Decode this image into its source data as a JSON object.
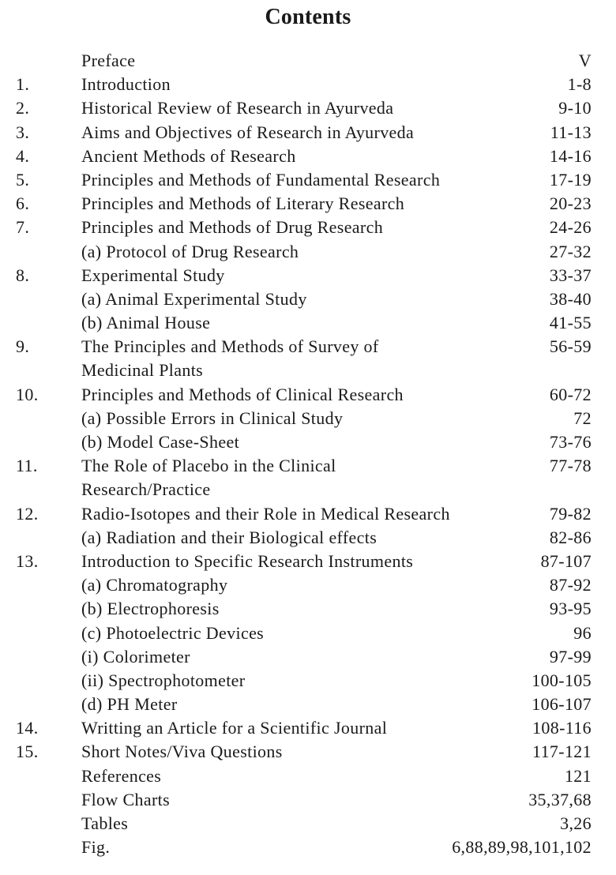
{
  "title": "Contents",
  "entries": [
    {
      "num": "",
      "label": "Preface",
      "pages": "V"
    },
    {
      "num": "1.",
      "label": "Introduction",
      "pages": "1-8"
    },
    {
      "num": "2.",
      "label": "Historical Review of Research in Ayurveda",
      "pages": "9-10"
    },
    {
      "num": "3.",
      "label": "Aims and Objectives of Research in Ayurveda",
      "pages": "11-13"
    },
    {
      "num": "4.",
      "label": "Ancient Methods of Research",
      "pages": "14-16"
    },
    {
      "num": "5.",
      "label": "Principles and Methods of Fundamental Research",
      "pages": "17-19"
    },
    {
      "num": "6.",
      "label": "Principles and Methods of Literary Research",
      "pages": "20-23"
    },
    {
      "num": "7.",
      "label": "Principles and Methods of Drug Research",
      "pages": "24-26"
    },
    {
      "num": "",
      "label": "(a) Protocol of Drug Research",
      "pages": "27-32"
    },
    {
      "num": "8.",
      "label": "Experimental Study",
      "pages": "33-37"
    },
    {
      "num": "",
      "label": "(a) Animal Experimental Study",
      "pages": "38-40"
    },
    {
      "num": "",
      "label": "(b) Animal House",
      "pages": "41-55"
    },
    {
      "num": "9.",
      "label": "The Principles and Methods of Survey of",
      "pages": "56-59"
    },
    {
      "num": "",
      "label": "Medicinal Plants",
      "pages": ""
    },
    {
      "num": "10.",
      "label": "Principles and Methods of Clinical Research",
      "pages": "60-72"
    },
    {
      "num": "",
      "label": "(a) Possible Errors in Clinical Study",
      "pages": "72"
    },
    {
      "num": "",
      "label": "(b) Model Case-Sheet",
      "pages": "73-76"
    },
    {
      "num": "11.",
      "label": "The Role of Placebo in the Clinical",
      "pages": "77-78"
    },
    {
      "num": "",
      "label": "Research/Practice",
      "pages": ""
    },
    {
      "num": "12.",
      "label": "Radio-Isotopes and their Role in Medical Research",
      "pages": "79-82"
    },
    {
      "num": "",
      "label": "(a) Radiation and their Biological effects",
      "pages": "82-86"
    },
    {
      "num": "13.",
      "label": "Introduction to Specific Research Instruments",
      "pages": "87-107"
    },
    {
      "num": "",
      "label": "(a) Chromatography",
      "pages": "87-92"
    },
    {
      "num": "",
      "label": "(b) Electrophoresis",
      "pages": "93-95"
    },
    {
      "num": "",
      "label": "(c) Photoelectric Devices",
      "pages": "96"
    },
    {
      "num": "",
      "label": "(i) Colorimeter",
      "pages": "97-99"
    },
    {
      "num": "",
      "label": "(ii) Spectrophotometer",
      "pages": "100-105"
    },
    {
      "num": "",
      "label": "(d) PH Meter",
      "pages": "106-107"
    },
    {
      "num": "14.",
      "label": "Writting an Article for a Scientific Journal",
      "pages": "108-116"
    },
    {
      "num": "15.",
      "label": "Short Notes/Viva Questions",
      "pages": "117-121"
    },
    {
      "num": "",
      "label": "References",
      "pages": "121"
    },
    {
      "num": "",
      "label": "Flow Charts",
      "pages": "35,37,68"
    },
    {
      "num": "",
      "label": "Tables",
      "pages": "3,26"
    },
    {
      "num": "",
      "label": "Fig.",
      "pages": "6,88,89,98,101,102"
    }
  ]
}
